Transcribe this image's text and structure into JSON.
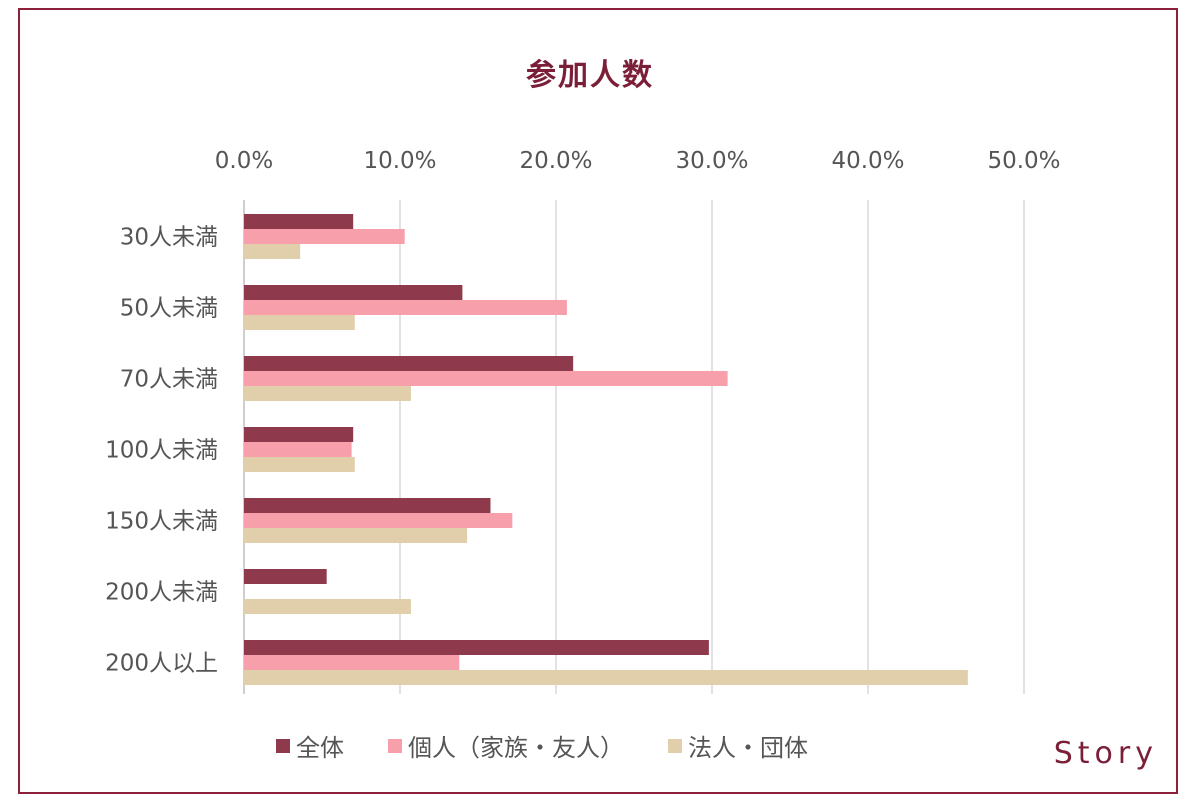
{
  "chart_data": {
    "type": "bar",
    "orientation": "horizontal",
    "title": "参加人数",
    "categories": [
      "30人未満",
      "50人未満",
      "70人未満",
      "100人未満",
      "150人未満",
      "200人未満",
      "200人以上"
    ],
    "series": [
      {
        "name": "全体",
        "color": "#8e3a4c",
        "values": [
          7.0,
          14.0,
          21.1,
          7.0,
          15.8,
          5.3,
          29.8
        ]
      },
      {
        "name": "個人（家族・友人）",
        "color": "#f7a0ab",
        "values": [
          10.3,
          20.7,
          31.0,
          6.9,
          17.2,
          0,
          13.8
        ]
      },
      {
        "name": "法人・団体",
        "color": "#e1ceaa",
        "values": [
          3.6,
          7.1,
          10.7,
          7.1,
          14.3,
          10.7,
          46.4
        ]
      }
    ],
    "xlim": [
      0,
      50
    ],
    "xticks": [
      "0.0%",
      "10.0%",
      "20.0%",
      "30.0%",
      "40.0%",
      "50.0%"
    ],
    "grid": true,
    "legend_position": "bottom"
  },
  "brand": "Story"
}
